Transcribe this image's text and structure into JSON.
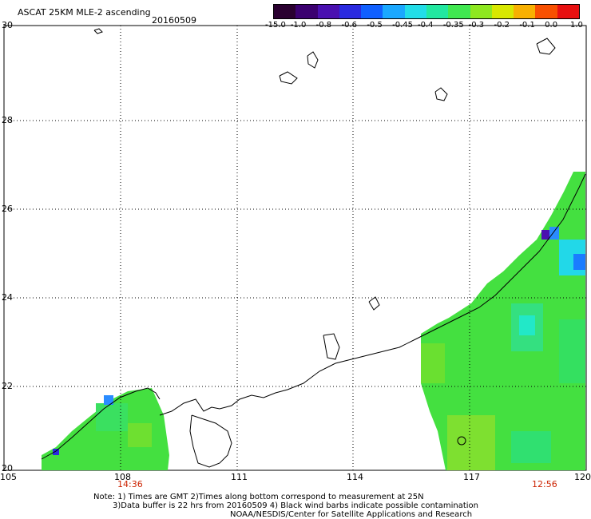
{
  "header": {
    "title": "ASCAT 25KM MLE-2 ascending",
    "date": "20160509"
  },
  "colorbar": {
    "labels": [
      "-15.0",
      "-1.0",
      "-0.8",
      "-0.6",
      "-0.5",
      "-0.45",
      "-0.4",
      "-0.35",
      "-0.3",
      "-0.2",
      "-0.1",
      "0.0",
      "1.0"
    ],
    "colors": [
      "#2a0030",
      "#3b0070",
      "#4a10b0",
      "#2a2ae0",
      "#1060ff",
      "#1aa8ff",
      "#22dde8",
      "#22e8a0",
      "#40e850",
      "#8ee820",
      "#d8e800",
      "#f8b000",
      "#f85000",
      "#e81010"
    ]
  },
  "axes": {
    "x_ticks": [
      "105",
      "108",
      "111",
      "114",
      "117",
      "120"
    ],
    "y_ticks": [
      "20",
      "22",
      "24",
      "26",
      "28",
      "30"
    ]
  },
  "times": {
    "left": "14:36",
    "right": "12:56"
  },
  "notes": {
    "line1": "Note: 1) Times are GMT 2)Times along bottom correspond to measurement at 25N",
    "line2": "3)Data buffer is 22 hrs from 20160509 4) Black wind barbs indicate possible contamination",
    "line3": "NOAA/NESDIS/Center for Satellite Applications and Research"
  }
}
